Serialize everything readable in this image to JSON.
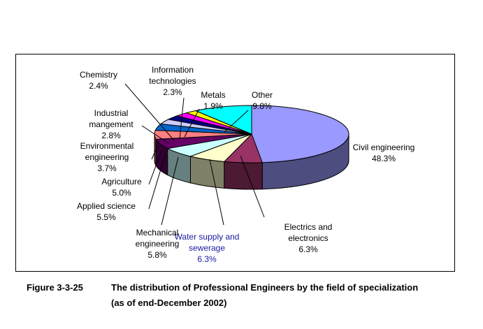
{
  "chart_data": {
    "type": "pie",
    "categories": [
      "Civil engineering",
      "Electrics and electronics",
      "Water supply and sewerage",
      "Mechanical engineering",
      "Applied science",
      "Agriculture",
      "Environmental engineering",
      "Industrial mangement",
      "Chemistry",
      "Information technologies",
      "Metals",
      "Other"
    ],
    "values": [
      48.3,
      6.3,
      6.3,
      5.8,
      5.5,
      5.0,
      3.7,
      2.8,
      2.4,
      2.3,
      1.9,
      9.8
    ],
    "value_labels": [
      "48.3%",
      "6.3%",
      "6.3%",
      "5.8%",
      "5.5%",
      "5.0%",
      "3.7%",
      "2.8%",
      "2.4%",
      "2.3%",
      "1.9%",
      "9.8%"
    ],
    "label_lines": [
      [
        "Civil engineering"
      ],
      [
        "Electrics and",
        "electronics"
      ],
      [
        "Water supply and",
        "sewerage"
      ],
      [
        "Mechanical",
        "engineering"
      ],
      [
        "Applied science"
      ],
      [
        "Agriculture"
      ],
      [
        "Environmental",
        "engineering"
      ],
      [
        "Industrial",
        "mangement"
      ],
      [
        "Chemistry"
      ],
      [
        "Information",
        "technologies"
      ],
      [
        "Metals"
      ],
      [
        "Other"
      ]
    ],
    "colors": [
      "#9999ff",
      "#993366",
      "#ffffcc",
      "#ccffff",
      "#660066",
      "#ff8080",
      "#0066cc",
      "#ccccff",
      "#000080",
      "#ff00ff",
      "#ffff00",
      "#00ffff"
    ],
    "label_colors": [
      "#000000",
      "#000000",
      "#1a1aa0",
      "#000000",
      "#000000",
      "#000000",
      "#000000",
      "#000000",
      "#000000",
      "#000000",
      "#000000",
      "#000000"
    ],
    "style": "3d-pie",
    "legend": "none"
  },
  "caption": {
    "figure_number": "Figure 3-3-25",
    "line1": "The distribution of Professional Engineers by the field of specialization",
    "line2": "(as of end-December 2002)"
  }
}
